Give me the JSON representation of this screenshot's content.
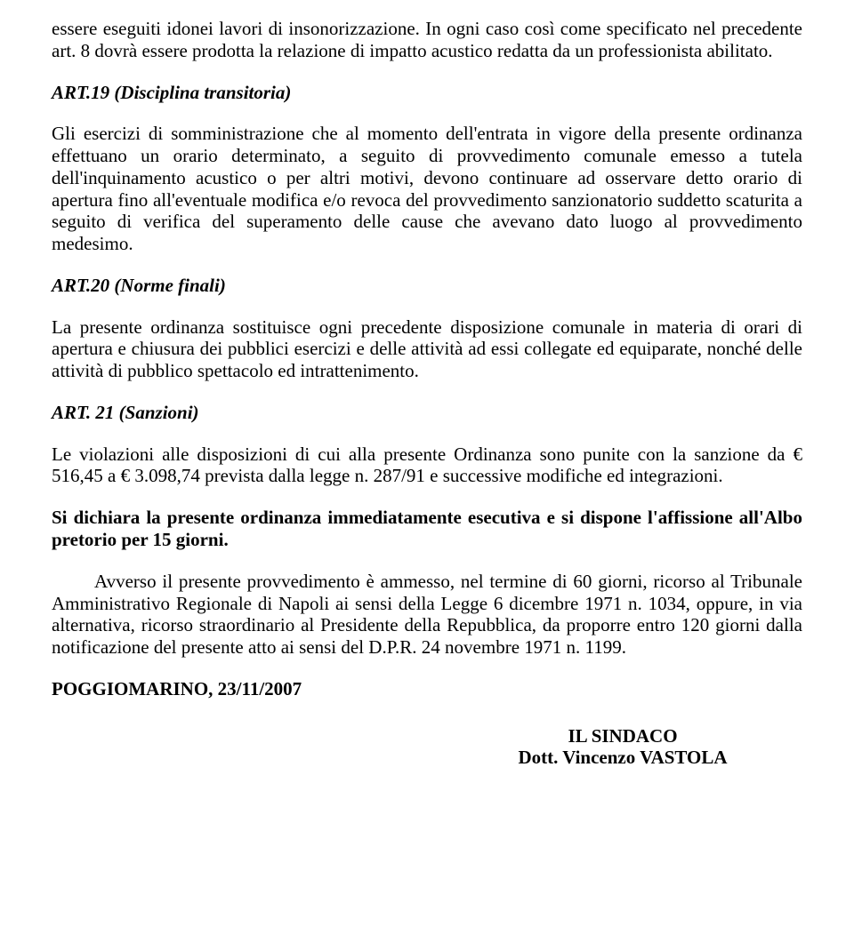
{
  "intro_para": "essere eseguiti idonei lavori di insonorizzazione. In ogni caso così come specificato nel precedente art. 8 dovrà essere prodotta la relazione di impatto acustico redatta da un professionista abilitato.",
  "art19": {
    "heading": "ART.19 (Disciplina transitoria)",
    "body": "Gli esercizi di somministrazione che al momento dell'entrata in vigore della presente ordinanza effettuano un orario determinato, a seguito di provvedimento comunale emesso a tutela dell'inquinamento acustico o per altri motivi, devono continuare ad osservare detto orario di apertura fino all'eventuale modifica e/o revoca del provvedimento sanzionatorio suddetto scaturita a seguito di verifica del superamento delle cause che avevano dato luogo al provvedimento medesimo."
  },
  "art20": {
    "heading": "ART.20   (Norme finali)",
    "body": "La presente ordinanza sostituisce ogni precedente disposizione comunale in materia di orari di apertura e chiusura dei pubblici esercizi e delle attività ad essi collegate ed equiparate, nonché delle attività di pubblico spettacolo ed intrattenimento."
  },
  "art21": {
    "heading": "ART. 21 (Sanzioni)",
    "body": "Le violazioni alle disposizioni di cui alla presente Ordinanza sono punite con la sanzione da € 516,45 a € 3.098,74 prevista dalla legge n. 287/91 e successive modifiche ed integrazioni."
  },
  "declaration": "Si dichiara la  presente ordinanza immediatamente esecutiva  e si dispone l'affissione all'Albo pretorio  per 15 giorni.",
  "appeal": "Avverso il presente provvedimento è ammesso, nel termine di 60 giorni, ricorso al Tribunale Amministrativo Regionale di Napoli ai sensi della Legge 6 dicembre 1971 n. 1034, oppure, in via alternativa, ricorso straordinario al Presidente della Repubblica, da proporre entro 120 giorni dalla notificazione del presente atto ai sensi del D.P.R. 24 novembre 1971 n. 1199.",
  "date": "POGGIOMARINO, 23/11/2007",
  "signature": {
    "role": "IL  SINDACO",
    "name": "Dott. Vincenzo VASTOLA"
  }
}
